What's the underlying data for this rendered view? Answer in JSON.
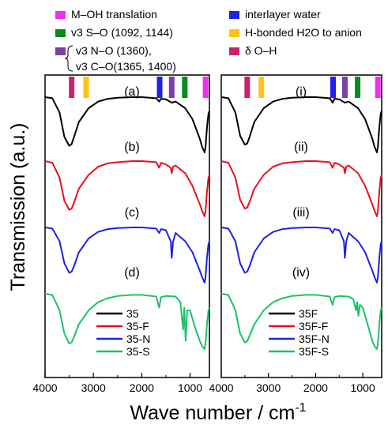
{
  "chart_data": {
    "type": "line",
    "ylabel": "Transmission (a.u.)",
    "xlabel": "Wave number / cm",
    "xlabel_sup": "-1",
    "xlim": [
      4000,
      600
    ],
    "x_reversed": true,
    "x_ticks": [
      4000,
      3000,
      2000,
      1000
    ],
    "band_legend": [
      {
        "swatch": "#f030f0",
        "lines": [
          "M–OH translation"
        ]
      },
      {
        "swatch": "#0a8a1e",
        "lines": [
          "v3 S–O (1092, 1144)"
        ]
      },
      {
        "swatch": "#7b3fa6",
        "lines": [
          "v3 N–O (1360),",
          "v3 C–O(1365, 1400)"
        ]
      },
      {
        "swatch": "#1e22e6",
        "lines": [
          "interlayer water"
        ]
      },
      {
        "swatch": "#ffc21a",
        "lines": [
          "H-bonded H2O to anion"
        ]
      },
      {
        "swatch": "#c8226a",
        "lines": [
          "δ O–H"
        ]
      }
    ],
    "band_markers": [
      {
        "x": 3450,
        "color": "#c8226a"
      },
      {
        "x": 3150,
        "color": "#ffc21a"
      },
      {
        "x": 1630,
        "color": "#1e22e6"
      },
      {
        "x": 1380,
        "color": "#7b3fa6"
      },
      {
        "x": 1110,
        "color": "#0a8a1e"
      },
      {
        "x": 680,
        "color": "#f030f0"
      }
    ],
    "panels": [
      {
        "labels": [
          "(a)",
          "(b)",
          "(c)",
          "(d)"
        ],
        "legend": [
          "35",
          "35-F",
          "35-N",
          "35-S"
        ],
        "series": [
          {
            "name": "35",
            "color": "#000000",
            "x": [
              4000,
              3850,
              3700,
              3600,
              3500,
              3450,
              3400,
              3300,
              3100,
              2900,
              2700,
              2500,
              2200,
              2000,
              1700,
              1640,
              1600,
              1500,
              1380,
              1300,
              1100,
              950,
              800,
              750,
              700,
              680,
              650,
              620,
              600
            ],
            "y": [
              0.0,
              0.02,
              0.28,
              0.72,
              0.88,
              0.85,
              0.72,
              0.45,
              0.2,
              0.08,
              0.03,
              0.01,
              0.0,
              0.0,
              0.02,
              0.08,
              0.03,
              0.04,
              0.1,
              0.08,
              0.2,
              0.4,
              0.75,
              0.9,
              1.0,
              0.9,
              0.55,
              0.3,
              0.25
            ]
          },
          {
            "name": "35-F",
            "color": "#e8111b",
            "x": [
              4000,
              3850,
              3700,
              3600,
              3500,
              3450,
              3400,
              3300,
              3100,
              2900,
              2700,
              2500,
              2200,
              2000,
              1700,
              1640,
              1600,
              1500,
              1400,
              1380,
              1350,
              1300,
              1100,
              950,
              800,
              750,
              700,
              680,
              650,
              620,
              600
            ],
            "y": [
              0.0,
              0.03,
              0.3,
              0.72,
              0.88,
              0.86,
              0.75,
              0.5,
              0.25,
              0.1,
              0.04,
              0.02,
              0.0,
              0.0,
              0.02,
              0.12,
              0.03,
              0.06,
              0.12,
              0.22,
              0.1,
              0.08,
              0.22,
              0.45,
              0.78,
              0.9,
              1.0,
              0.9,
              0.55,
              0.3,
              0.25
            ]
          },
          {
            "name": "35-N",
            "color": "#1e22e6",
            "x": [
              4000,
              3850,
              3700,
              3600,
              3500,
              3450,
              3400,
              3300,
              3100,
              2900,
              2700,
              2500,
              2200,
              2000,
              1700,
              1640,
              1600,
              1500,
              1400,
              1380,
              1350,
              1300,
              1100,
              950,
              800,
              750,
              700,
              680,
              650,
              620,
              600
            ],
            "y": [
              0.0,
              0.02,
              0.25,
              0.65,
              0.82,
              0.8,
              0.7,
              0.45,
              0.2,
              0.08,
              0.03,
              0.01,
              0.0,
              0.0,
              0.02,
              0.1,
              0.03,
              0.05,
              0.25,
              0.55,
              0.25,
              0.1,
              0.25,
              0.45,
              0.78,
              0.9,
              1.0,
              0.9,
              0.55,
              0.3,
              0.25
            ]
          },
          {
            "name": "35-S",
            "color": "#1dc26a",
            "x": [
              4000,
              3850,
              3700,
              3600,
              3500,
              3450,
              3400,
              3300,
              3100,
              2900,
              2700,
              2500,
              2200,
              2000,
              1700,
              1640,
              1600,
              1500,
              1300,
              1200,
              1144,
              1120,
              1092,
              1060,
              1000,
              900,
              800,
              750,
              700,
              680,
              650,
              620,
              600
            ],
            "y": [
              0.0,
              0.02,
              0.3,
              0.72,
              0.9,
              0.88,
              0.78,
              0.55,
              0.3,
              0.15,
              0.08,
              0.04,
              0.02,
              0.02,
              0.05,
              0.25,
              0.06,
              0.04,
              0.05,
              0.15,
              0.65,
              0.25,
              0.85,
              0.3,
              0.3,
              0.6,
              0.85,
              0.95,
              1.0,
              0.9,
              0.55,
              0.3,
              0.25
            ]
          }
        ]
      },
      {
        "labels": [
          "(i)",
          "(ii)",
          "(iii)",
          "(iv)"
        ],
        "legend": [
          "35F",
          "35F-F",
          "35F-N",
          "35F-S"
        ],
        "series": [
          {
            "name": "35F",
            "color": "#000000",
            "x": [
              4000,
              3850,
              3700,
              3600,
              3500,
              3450,
              3400,
              3300,
              3100,
              2900,
              2700,
              2500,
              2200,
              2000,
              1700,
              1640,
              1600,
              1500,
              1380,
              1300,
              1100,
              950,
              800,
              750,
              700,
              680,
              650,
              620,
              600
            ],
            "y": [
              0.0,
              0.02,
              0.28,
              0.7,
              0.86,
              0.84,
              0.72,
              0.45,
              0.2,
              0.08,
              0.03,
              0.01,
              0.0,
              0.0,
              0.02,
              0.1,
              0.03,
              0.04,
              0.1,
              0.08,
              0.2,
              0.4,
              0.75,
              0.9,
              1.0,
              0.9,
              0.55,
              0.3,
              0.25
            ]
          },
          {
            "name": "35F-F",
            "color": "#e8111b",
            "x": [
              4000,
              3850,
              3700,
              3600,
              3500,
              3450,
              3400,
              3300,
              3100,
              2900,
              2700,
              2500,
              2200,
              2000,
              1700,
              1640,
              1600,
              1500,
              1400,
              1380,
              1350,
              1300,
              1100,
              950,
              800,
              750,
              700,
              680,
              650,
              620,
              600
            ],
            "y": [
              0.0,
              0.03,
              0.3,
              0.7,
              0.86,
              0.84,
              0.74,
              0.5,
              0.25,
              0.1,
              0.04,
              0.02,
              0.0,
              0.0,
              0.02,
              0.12,
              0.03,
              0.06,
              0.12,
              0.22,
              0.1,
              0.08,
              0.22,
              0.45,
              0.78,
              0.9,
              1.0,
              0.9,
              0.55,
              0.3,
              0.25
            ]
          },
          {
            "name": "35F-N",
            "color": "#1e22e6",
            "x": [
              4000,
              3850,
              3700,
              3600,
              3500,
              3450,
              3400,
              3300,
              3100,
              2900,
              2700,
              2500,
              2200,
              2000,
              1700,
              1640,
              1600,
              1500,
              1400,
              1380,
              1350,
              1300,
              1100,
              950,
              800,
              750,
              700,
              680,
              650,
              620,
              600
            ],
            "y": [
              0.0,
              0.02,
              0.25,
              0.65,
              0.82,
              0.8,
              0.7,
              0.45,
              0.2,
              0.08,
              0.03,
              0.01,
              0.0,
              0.0,
              0.02,
              0.1,
              0.03,
              0.05,
              0.25,
              0.55,
              0.25,
              0.1,
              0.25,
              0.45,
              0.78,
              0.9,
              1.0,
              0.9,
              0.55,
              0.3,
              0.25
            ]
          },
          {
            "name": "35F-S",
            "color": "#1dc26a",
            "x": [
              4000,
              3850,
              3700,
              3600,
              3500,
              3450,
              3400,
              3300,
              3100,
              2900,
              2700,
              2500,
              2200,
              2000,
              1700,
              1640,
              1600,
              1500,
              1300,
              1200,
              1144,
              1120,
              1092,
              1060,
              1000,
              900,
              800,
              750,
              700,
              680,
              650,
              620,
              600
            ],
            "y": [
              0.0,
              0.02,
              0.3,
              0.72,
              0.88,
              0.86,
              0.76,
              0.55,
              0.3,
              0.15,
              0.08,
              0.04,
              0.02,
              0.02,
              0.05,
              0.2,
              0.06,
              0.04,
              0.05,
              0.1,
              0.3,
              0.15,
              0.4,
              0.2,
              0.25,
              0.55,
              0.85,
              0.95,
              1.0,
              0.9,
              0.55,
              0.3,
              0.25
            ]
          }
        ]
      }
    ]
  }
}
